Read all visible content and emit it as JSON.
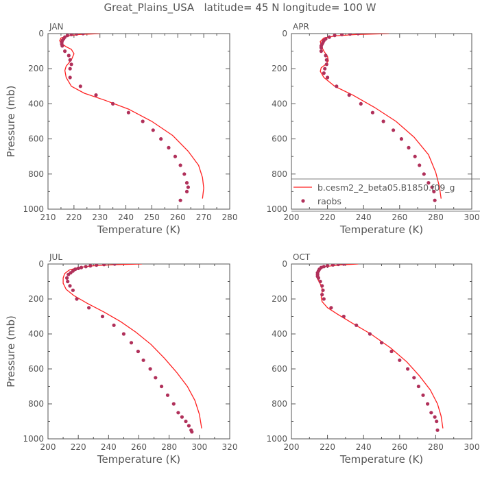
{
  "title": "Great_Plains_USA   latitude= 45 N longitude= 100 W",
  "colors": {
    "model": "#ff2020",
    "obs": "#b0305a",
    "axis": "#555555"
  },
  "legend": {
    "model_label": "b.cesm2_2_beta05.B1850.f09_g",
    "obs_label": "raobs",
    "placement": "lower-right of APR panel"
  },
  "chart_data": [
    {
      "type": "line",
      "panel": "JAN",
      "xlabel": "Temperature (K)",
      "ylabel": "Pressure (mb)",
      "xlim": [
        210,
        280
      ],
      "ylim": [
        1000,
        0
      ],
      "xticks": [
        "210",
        "220",
        "230",
        "240",
        "250",
        "260",
        "270",
        "280"
      ],
      "yticks": [
        "0",
        "200",
        "400",
        "600",
        "800",
        "1000"
      ],
      "series": [
        {
          "name": "b.cesm2_2_beta05.B1850.f09_g",
          "kind": "line",
          "x": [
            230,
            222,
            218,
            215,
            214.5,
            215,
            217,
            219,
            220,
            219,
            217,
            216.5,
            217,
            219,
            224,
            232,
            241,
            250,
            258,
            264,
            268,
            269.5,
            270,
            269.5
          ],
          "y": [
            0,
            5,
            12,
            25,
            40,
            55,
            75,
            90,
            115,
            150,
            185,
            210,
            250,
            300,
            340,
            380,
            430,
            500,
            580,
            670,
            750,
            820,
            880,
            940
          ]
        },
        {
          "name": "raobs",
          "kind": "scatter",
          "x": [
            223.5,
            221,
            219,
            217.5,
            216.5,
            216,
            215.5,
            215.3,
            215.3,
            215.5,
            216.5,
            218,
            218.5,
            219,
            218.5,
            218.5,
            222.5,
            228.5,
            235,
            241,
            246.5,
            250.5,
            253.5,
            256.5,
            259,
            261,
            262.5,
            263.5,
            264,
            263.5,
            261
          ],
          "y": [
            0,
            2,
            5,
            10,
            20,
            30,
            40,
            50,
            60,
            70,
            100,
            125,
            150,
            175,
            200,
            250,
            300,
            350,
            400,
            450,
            500,
            550,
            600,
            650,
            700,
            750,
            800,
            850,
            875,
            900,
            950
          ]
        }
      ]
    },
    {
      "type": "line",
      "panel": "APR",
      "xlabel": "Temperature (K)",
      "ylabel": "",
      "xlim": [
        200,
        300
      ],
      "ylim": [
        1000,
        0
      ],
      "xticks": [
        "200",
        "220",
        "240",
        "260",
        "280",
        "300"
      ],
      "yticks": [
        "0",
        "200",
        "400",
        "600",
        "800",
        "1000"
      ],
      "series": [
        {
          "name": "b.cesm2_2_beta05.B1850.f09_g",
          "kind": "line",
          "x": [
            254,
            236,
            225,
            218,
            216,
            216.5,
            218,
            220,
            220.5,
            219,
            216.5,
            216,
            218,
            224,
            234,
            246,
            258,
            268,
            276,
            280,
            282,
            283
          ],
          "y": [
            0,
            5,
            12,
            25,
            45,
            70,
            100,
            130,
            155,
            175,
            195,
            215,
            250,
            300,
            350,
            420,
            500,
            590,
            690,
            790,
            870,
            940
          ]
        },
        {
          "name": "raobs",
          "kind": "scatter",
          "x": [
            237,
            232.5,
            228,
            224,
            221,
            219,
            218,
            217.5,
            217,
            216.5,
            216.5,
            216.5,
            219,
            219.5,
            219.5,
            218.5,
            218,
            220,
            225,
            232,
            238.5,
            245,
            251,
            256.5,
            261,
            265,
            268.5,
            271,
            273.5,
            276,
            278,
            279,
            279.5
          ],
          "y": [
            0,
            2,
            5,
            10,
            20,
            30,
            40,
            50,
            60,
            70,
            80,
            100,
            125,
            150,
            175,
            200,
            225,
            250,
            300,
            350,
            400,
            450,
            500,
            550,
            600,
            650,
            700,
            750,
            800,
            850,
            875,
            900,
            950
          ]
        }
      ]
    },
    {
      "type": "line",
      "panel": "JUL",
      "xlabel": "Temperature (K)",
      "ylabel": "Pressure (mb)",
      "xlim": [
        200,
        320
      ],
      "ylim": [
        1000,
        0
      ],
      "xticks": [
        "200",
        "220",
        "240",
        "260",
        "280",
        "300",
        "320"
      ],
      "yticks": [
        "0",
        "200",
        "400",
        "600",
        "800",
        "1000"
      ],
      "series": [
        {
          "name": "b.cesm2_2_beta05.B1850.f09_g",
          "kind": "line",
          "x": [
            262,
            244,
            230,
            220,
            214,
            211,
            210,
            210,
            212,
            217,
            226,
            237,
            248,
            258,
            268,
            277,
            285,
            292,
            297,
            300,
            301.5
          ],
          "y": [
            0,
            4,
            10,
            20,
            35,
            55,
            80,
            110,
            145,
            180,
            225,
            275,
            330,
            390,
            460,
            540,
            620,
            700,
            780,
            860,
            940
          ]
        },
        {
          "name": "raobs",
          "kind": "scatter",
          "x": [
            244,
            237,
            232,
            228,
            225,
            222,
            220,
            218,
            216.5,
            215,
            213.5,
            212.5,
            213,
            214.5,
            216.5,
            219,
            227,
            236,
            243.5,
            250,
            255,
            259.5,
            263,
            267.5,
            271,
            275,
            279,
            283,
            286,
            288.5,
            291,
            293,
            294.5,
            295
          ],
          "y": [
            0,
            3,
            6,
            10,
            15,
            20,
            25,
            30,
            40,
            50,
            60,
            80,
            100,
            125,
            150,
            200,
            250,
            300,
            350,
            400,
            450,
            500,
            550,
            600,
            650,
            700,
            750,
            800,
            850,
            875,
            900,
            925,
            950,
            960
          ]
        }
      ]
    },
    {
      "type": "line",
      "panel": "OCT",
      "xlabel": "Temperature (K)",
      "ylabel": "",
      "xlim": [
        200,
        300
      ],
      "ylim": [
        1000,
        0
      ],
      "xticks": [
        "200",
        "220",
        "240",
        "260",
        "280",
        "300"
      ],
      "yticks": [
        "0",
        "200",
        "400",
        "600",
        "800",
        "1000"
      ],
      "series": [
        {
          "name": "b.cesm2_2_beta05.B1850.f09_g",
          "kind": "line",
          "x": [
            237,
            227,
            219,
            215,
            214,
            214.5,
            216,
            217,
            217,
            216.5,
            217,
            220,
            226,
            234,
            244,
            255,
            264,
            271,
            277,
            281,
            283,
            284
          ],
          "y": [
            0,
            5,
            14,
            30,
            55,
            85,
            115,
            140,
            165,
            190,
            215,
            250,
            290,
            340,
            400,
            480,
            560,
            640,
            720,
            800,
            870,
            940
          ]
        },
        {
          "name": "raobs",
          "kind": "scatter",
          "x": [
            229,
            226,
            223,
            220,
            218,
            216.5,
            215.5,
            215,
            214.5,
            214.5,
            214.5,
            215,
            216,
            217,
            217.5,
            217,
            218,
            222,
            229,
            236,
            243.5,
            250,
            255.5,
            260,
            264.5,
            268,
            270.5,
            273,
            275.5,
            277.5,
            279.5,
            280.5,
            281
          ],
          "y": [
            0,
            2,
            5,
            10,
            15,
            20,
            30,
            40,
            50,
            60,
            70,
            80,
            100,
            125,
            150,
            175,
            200,
            250,
            300,
            350,
            400,
            450,
            500,
            550,
            600,
            650,
            700,
            750,
            800,
            850,
            875,
            900,
            950
          ]
        }
      ]
    }
  ]
}
